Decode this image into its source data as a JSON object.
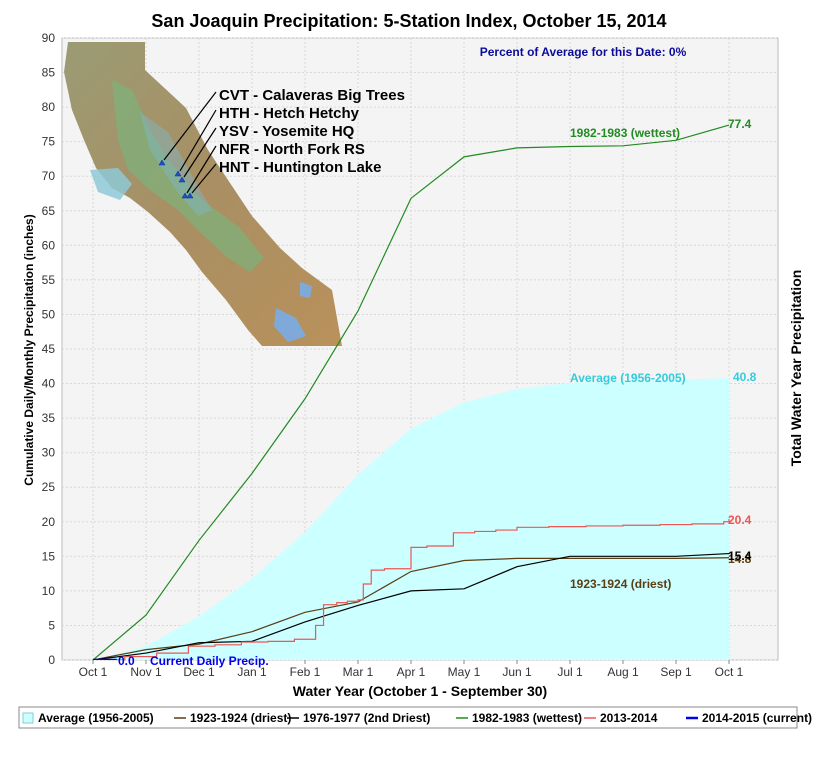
{
  "chart_data": {
    "type": "line",
    "title": "San Joaquin Precipitation: 5-Station Index, October 15, 2014",
    "subtitle": "Percent of Average for this Date: 0%",
    "xlabel": "Water Year (October 1 - September 30)",
    "ylabel": "Cumulative Daily/Monthly Precipitation (inches)",
    "ylabel_right": "Total Water Year Precipitation",
    "ylim": [
      0,
      90
    ],
    "yticks": [
      0,
      5,
      10,
      15,
      20,
      25,
      30,
      35,
      40,
      45,
      50,
      55,
      60,
      65,
      70,
      75,
      80,
      85,
      90
    ],
    "x_ticks": [
      "Oct 1",
      "Nov 1",
      "Dec 1",
      "Jan 1",
      "Feb 1",
      "Mar 1",
      "Apr 1",
      "May 1",
      "Jun 1",
      "Jul 1",
      "Aug 1",
      "Sep 1",
      "Oct 1"
    ],
    "grid": true,
    "legend_position": "bottom",
    "series": [
      {
        "name": "Average (1956-2005)",
        "kind": "area",
        "color": "#ccffff",
        "label_color": "#33ccdd",
        "label": "Average (1956-2005)",
        "total": "40.8",
        "x": [
          0,
          1,
          2,
          3,
          4,
          5,
          6,
          7,
          8,
          9,
          10,
          11,
          12
        ],
        "y": [
          0,
          2.0,
          6.3,
          11.8,
          18.5,
          26.8,
          33.5,
          37.3,
          39.2,
          40.1,
          40.4,
          40.5,
          40.8
        ]
      },
      {
        "name": "1923-1924 (driest)",
        "kind": "line",
        "color": "#5a3e14",
        "label_color": "#5a3e14",
        "label": "1923-1924 (driest)",
        "total": "14.8",
        "x": [
          0,
          1,
          2,
          3,
          4,
          5,
          6,
          7,
          8,
          9,
          10,
          11,
          12
        ],
        "y": [
          0,
          1.5,
          2.3,
          4.1,
          6.9,
          8.4,
          12.8,
          14.4,
          14.7,
          14.7,
          14.7,
          14.7,
          14.8
        ]
      },
      {
        "name": "1976-1977 (2nd Driest)",
        "kind": "line",
        "color": "#000000",
        "label_color": "#000000",
        "total": "15.4",
        "x": [
          0,
          1,
          2,
          3,
          4,
          5,
          6,
          7,
          8,
          9,
          10,
          11,
          12
        ],
        "y": [
          0,
          1.0,
          2.5,
          2.7,
          5.5,
          7.9,
          10.0,
          10.3,
          13.5,
          15.0,
          15.0,
          15.0,
          15.4
        ]
      },
      {
        "name": "1982-1983 (wettest)",
        "kind": "line",
        "color": "#228b22",
        "label_color": "#228b22",
        "label": "1982-1983 (wettest)",
        "total": "77.4",
        "x": [
          0,
          1,
          2,
          3,
          4,
          5,
          6,
          7,
          8,
          9,
          10,
          11,
          12
        ],
        "y": [
          0,
          6.5,
          17.3,
          27.0,
          37.8,
          50.5,
          66.8,
          72.8,
          74.1,
          74.3,
          74.4,
          75.2,
          77.4
        ]
      },
      {
        "name": "2013-2014",
        "kind": "step",
        "color": "#ee5555",
        "label_color": "#ee5555",
        "total": "20.4",
        "x": [
          0,
          0.6,
          1.2,
          1.8,
          2.3,
          2.8,
          3.3,
          3.8,
          4.2,
          4.35,
          4.6,
          4.8,
          5.0,
          5.1,
          5.25,
          5.5,
          6.0,
          6.3,
          6.8,
          7.2,
          7.6,
          8.0,
          8.6,
          9.3,
          10.0,
          10.7,
          11.3,
          11.9,
          12.0
        ],
        "y": [
          0,
          0.5,
          1.0,
          2.0,
          2.2,
          2.6,
          2.7,
          3.0,
          5.0,
          8.0,
          8.3,
          8.5,
          8.7,
          11.0,
          13.0,
          13.2,
          16.3,
          16.5,
          18.4,
          18.6,
          18.8,
          19.2,
          19.3,
          19.4,
          19.5,
          19.6,
          19.7,
          20.0,
          20.4
        ]
      },
      {
        "name": "2014-2015 (current)",
        "kind": "line",
        "color": "#0000ee",
        "label_color": "#0000ee",
        "label": "Current Daily Precip.",
        "total": "0.0",
        "x": [
          0,
          0.45
        ],
        "y": [
          0,
          0
        ]
      }
    ],
    "map_stations": [
      "CVT - Calaveras Big Trees",
      "HTH - Hetch Hetchy",
      "YSV - Yosemite HQ",
      "NFR - North Fork RS",
      "HNT - Huntington Lake"
    ]
  }
}
